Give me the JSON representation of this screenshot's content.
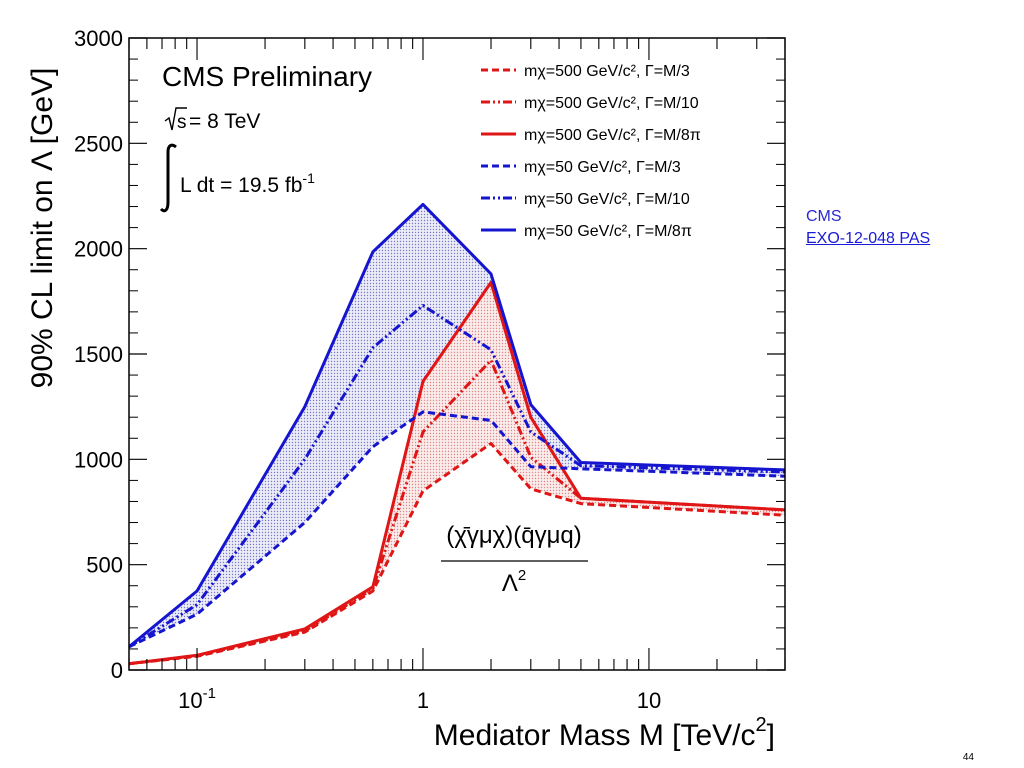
{
  "chart_data": {
    "type": "line",
    "xscale": "log",
    "xlim": [
      0.05,
      40
    ],
    "ylim": [
      0,
      3000
    ],
    "xlabel": "Mediator Mass M [TeV/c",
    "xlabel_sup": "2",
    "xlabel_end": "]",
    "ylabel": "90% CL limit on Λ [GeV]",
    "yticks": [
      0,
      500,
      1000,
      1500,
      2000,
      2500,
      3000
    ],
    "xticks": [
      {
        "value": 0.1,
        "base": "10",
        "exp": "-1"
      },
      {
        "value": 1,
        "base": "1",
        "exp": ""
      },
      {
        "value": 10,
        "base": "10",
        "exp": ""
      }
    ],
    "annotations": {
      "experiment": "CMS Preliminary",
      "energy_root": "s",
      "energy_value": " = 8 TeV",
      "lumi_text": "L dt = 19.5 fb",
      "lumi_sup": "-1",
      "formula_numerator": "(χ̄γμχ)(q̄γμq)",
      "formula_denominator": "Λ",
      "formula_denominator_sup": "2"
    },
    "legend_position": "top-right",
    "series": [
      {
        "name": "mχ=500 GeV/c², Γ=M/3",
        "color": "#e01515",
        "dash": "dashed",
        "x": [
          0.05,
          0.1,
          0.3,
          0.6,
          1,
          2,
          3,
          5,
          40
        ],
        "y": [
          30,
          65,
          180,
          375,
          850,
          1075,
          860,
          790,
          735
        ]
      },
      {
        "name": "mχ=500 GeV/c², Γ=M/10",
        "color": "#e01515",
        "dash": "dashdotdot",
        "x": [
          0.05,
          0.1,
          0.3,
          0.6,
          1,
          2,
          3,
          5,
          40
        ],
        "y": [
          30,
          68,
          185,
          385,
          1130,
          1470,
          1010,
          815,
          760
        ]
      },
      {
        "name": "mχ=500 GeV/c², Γ=M/8π",
        "color": "#e01515",
        "dash": "solid",
        "x": [
          0.05,
          0.1,
          0.3,
          0.6,
          1,
          2,
          3,
          5,
          40
        ],
        "y": [
          30,
          70,
          195,
          395,
          1370,
          1840,
          1200,
          815,
          760
        ]
      },
      {
        "name": "mχ=50 GeV/c², Γ=M/3",
        "color": "#1515d0",
        "dash": "dashed",
        "x": [
          0.05,
          0.1,
          0.3,
          0.6,
          1,
          2,
          3,
          5,
          40
        ],
        "y": [
          110,
          265,
          700,
          1060,
          1225,
          1185,
          965,
          955,
          920
        ]
      },
      {
        "name": "mχ=50 GeV/c², Γ=M/10",
        "color": "#1515d0",
        "dash": "dashdotdot",
        "x": [
          0.05,
          0.1,
          0.3,
          0.6,
          1,
          2,
          3,
          5,
          40
        ],
        "y": [
          110,
          310,
          1000,
          1530,
          1730,
          1520,
          1130,
          970,
          940
        ]
      },
      {
        "name": "mχ=50 GeV/c², Γ=M/8π",
        "color": "#1515d0",
        "dash": "solid",
        "x": [
          0.05,
          0.1,
          0.3,
          0.6,
          1,
          2,
          3,
          5,
          40
        ],
        "y": [
          110,
          375,
          1250,
          1985,
          2210,
          1880,
          1260,
          985,
          950
        ]
      }
    ],
    "bands": [
      {
        "upper": 5,
        "lower": 3,
        "color": "#1515d0",
        "fill": "#d8d8ee"
      },
      {
        "upper": 2,
        "lower": 0,
        "color": "#e01515",
        "fill": "#f6d4d4"
      }
    ]
  },
  "side_links": {
    "org": "CMS",
    "ref": "EXO-12-048 PAS"
  },
  "page_number": "44"
}
